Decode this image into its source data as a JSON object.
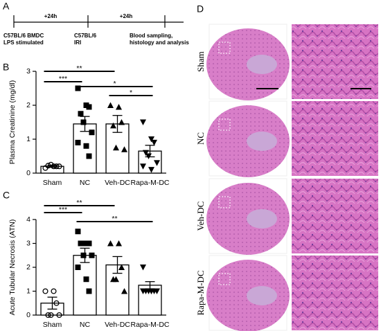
{
  "panel_labels": [
    "A",
    "B",
    "C",
    "D"
  ],
  "timeline": {
    "intervals": [
      "+24h",
      "+24h"
    ],
    "events": [
      [
        "C57BL/6 BMDC",
        "LPS stimulated"
      ],
      [
        "C57BL/6",
        "IRI"
      ],
      [
        "Blood sampling,",
        "histology and analysis"
      ]
    ]
  },
  "histology": {
    "rows": [
      "Sham",
      "NC",
      "Veh-DC",
      "Rapa-M-DC"
    ]
  },
  "chart_data": [
    {
      "type": "bar",
      "ylabel": "Plasma Creatinine (mg/dl)",
      "categories": [
        "Sham",
        "NC",
        "Veh-DC",
        "Rapa-M-DC"
      ],
      "values": [
        0.2,
        1.45,
        1.45,
        0.65
      ],
      "errors": [
        0.03,
        0.22,
        0.25,
        0.17
      ],
      "points": [
        [
          0.15,
          0.2,
          0.2,
          0.22,
          0.25,
          0.2
        ],
        [
          2.5,
          2.0,
          1.95,
          1.75,
          1.5,
          1.2,
          0.9,
          0.8,
          0.5
        ],
        [
          2.0,
          1.95,
          1.5,
          1.4,
          0.75,
          0.7
        ],
        [
          1.5,
          1.0,
          0.9,
          0.6,
          0.5,
          0.3,
          0.2,
          0.1
        ]
      ],
      "markers": [
        "circle",
        "square",
        "triangle-up",
        "triangle-down"
      ],
      "color": "#000000",
      "ylim": [
        0,
        3
      ],
      "yticks": [
        0,
        1,
        2,
        3
      ],
      "significance": [
        "**",
        "***",
        "*",
        "*"
      ]
    },
    {
      "type": "bar",
      "ylabel": "Acute Tubular Necrosis (ATN)",
      "categories": [
        "Sham",
        "NC",
        "Veh-DC",
        "Rapa-M-DC"
      ],
      "values": [
        0.5,
        2.5,
        2.1,
        1.25
      ],
      "errors": [
        0.25,
        0.3,
        0.35,
        0.15
      ],
      "points": [
        [
          1,
          1,
          0.5,
          0,
          0,
          0
        ],
        [
          3.5,
          3,
          3,
          3,
          2.5,
          2.5,
          2,
          1.5,
          1
        ],
        [
          3,
          3,
          2,
          1.5,
          1.5,
          1
        ],
        [
          2,
          1,
          1,
          1,
          1,
          1,
          1,
          1
        ]
      ],
      "markers": [
        "circle",
        "square",
        "triangle-up",
        "triangle-down"
      ],
      "color": "#000000",
      "ylim": [
        0,
        4
      ],
      "yticks": [
        0,
        1,
        2,
        3,
        4
      ],
      "significance": [
        "**",
        "***",
        "**"
      ]
    }
  ]
}
